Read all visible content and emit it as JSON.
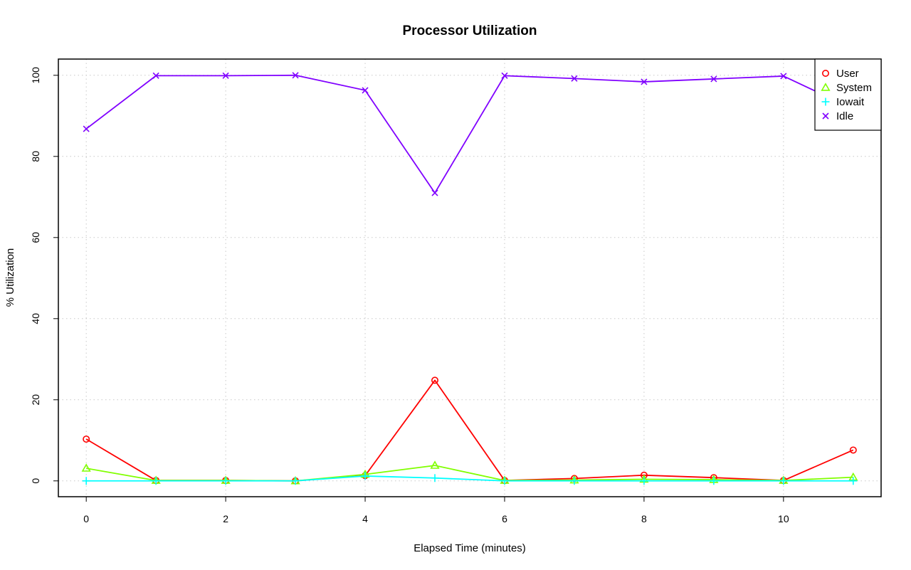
{
  "chart_data": {
    "type": "line",
    "title": "Processor Utilization",
    "xlabel": "Elapsed Time (minutes)",
    "ylabel": "% Utilization",
    "xlim": [
      -0.4,
      11.4
    ],
    "ylim": [
      -3.9,
      104
    ],
    "x_ticks": [
      0,
      2,
      4,
      6,
      8,
      10
    ],
    "y_ticks": [
      0,
      20,
      40,
      60,
      80,
      100
    ],
    "grid": true,
    "legend_position": "top-right",
    "x": [
      0,
      1,
      2,
      3,
      4,
      5,
      6,
      7,
      8,
      9,
      10,
      11
    ],
    "series": [
      {
        "name": "User",
        "color": "#ff0000",
        "marker": "circle",
        "values": [
          10.3,
          0.1,
          0.1,
          0.0,
          1.3,
          24.8,
          0.1,
          0.6,
          1.4,
          0.8,
          0.1,
          7.6
        ]
      },
      {
        "name": "System",
        "color": "#80ff00",
        "marker": "triangle",
        "values": [
          3.1,
          0.1,
          0.1,
          0.0,
          1.6,
          3.8,
          0.1,
          0.2,
          0.4,
          0.3,
          0.1,
          0.9
        ]
      },
      {
        "name": "Iowait",
        "color": "#00ffff",
        "marker": "plus",
        "values": [
          0.0,
          0.0,
          0.0,
          0.0,
          1.2,
          0.7,
          0.0,
          0.0,
          0.0,
          0.0,
          0.0,
          0.0
        ]
      },
      {
        "name": "Idle",
        "color": "#8000ff",
        "marker": "cross",
        "values": [
          86.8,
          99.9,
          99.9,
          100.0,
          96.3,
          71.0,
          99.9,
          99.2,
          98.4,
          99.1,
          99.8,
          91.7
        ]
      }
    ]
  }
}
